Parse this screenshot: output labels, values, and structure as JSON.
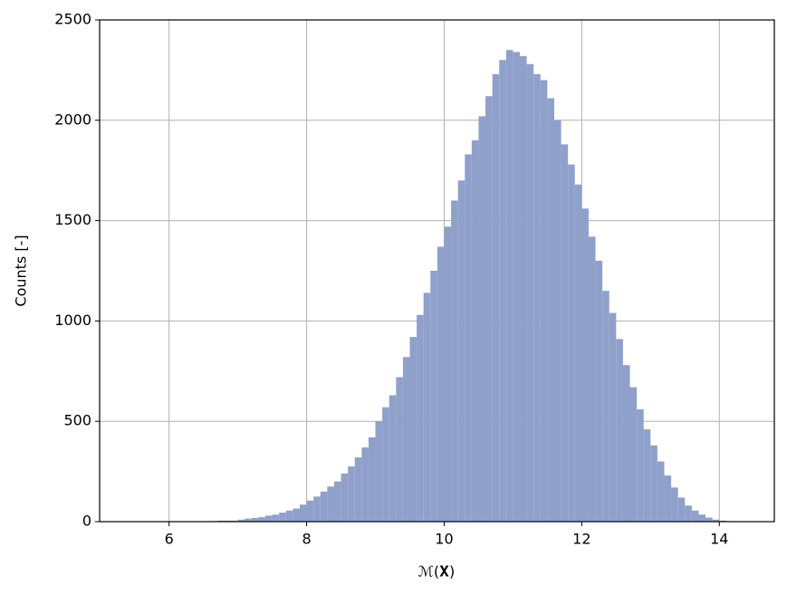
{
  "chart_data": {
    "type": "histogram",
    "xlabel": "ℳ(𝐗)",
    "ylabel": "Counts [-]",
    "bins": [
      5.4,
      5.5,
      5.6,
      5.7,
      5.8,
      5.9,
      6.0,
      6.1,
      6.2,
      6.3,
      6.4,
      6.5,
      6.6,
      6.7,
      6.8,
      6.9,
      7.0,
      7.1,
      7.2,
      7.3,
      7.4,
      7.5,
      7.6,
      7.7,
      7.8,
      7.9,
      8.0,
      8.1,
      8.2,
      8.3,
      8.4,
      8.5,
      8.6,
      8.7,
      8.8,
      8.9,
      9.0,
      9.1,
      9.2,
      9.3,
      9.4,
      9.5,
      9.6,
      9.7,
      9.8,
      9.9,
      10.0,
      10.1,
      10.2,
      10.3,
      10.4,
      10.5,
      10.6,
      10.7,
      10.8,
      10.9,
      11.0,
      11.1,
      11.2,
      11.3,
      11.4,
      11.5,
      11.6,
      11.7,
      11.8,
      11.9,
      12.0,
      12.1,
      12.2,
      12.3,
      12.4,
      12.5,
      12.6,
      12.7,
      12.8,
      12.9,
      13.0,
      13.1,
      13.2,
      13.3,
      13.4,
      13.5,
      13.6,
      13.7,
      13.8,
      13.9,
      14.0,
      14.1,
      14.2,
      14.3,
      14.4
    ],
    "values": [
      1,
      0,
      0,
      0,
      0,
      0,
      0,
      0,
      0,
      1,
      1,
      2,
      3,
      5,
      5,
      5,
      10,
      15,
      18,
      22,
      30,
      35,
      45,
      55,
      65,
      85,
      105,
      125,
      150,
      175,
      200,
      240,
      275,
      320,
      370,
      420,
      500,
      570,
      630,
      720,
      820,
      920,
      1030,
      1140,
      1250,
      1370,
      1470,
      1600,
      1700,
      1830,
      1900,
      2020,
      2120,
      2230,
      2300,
      2350,
      2340,
      2320,
      2280,
      2230,
      2200,
      2110,
      2000,
      1880,
      1780,
      1680,
      1560,
      1420,
      1300,
      1150,
      1040,
      910,
      780,
      670,
      560,
      460,
      380,
      300,
      230,
      170,
      120,
      80,
      55,
      35,
      20,
      10,
      5,
      3,
      1,
      1
    ],
    "color": "#8fa1cb",
    "xlim": [
      4.99,
      14.8
    ],
    "xticks": [
      6,
      8,
      10,
      12,
      14
    ],
    "ylim": [
      0,
      2500
    ],
    "yticks": [
      0,
      500,
      1000,
      1500,
      2000,
      2500
    ],
    "grid": true
  }
}
